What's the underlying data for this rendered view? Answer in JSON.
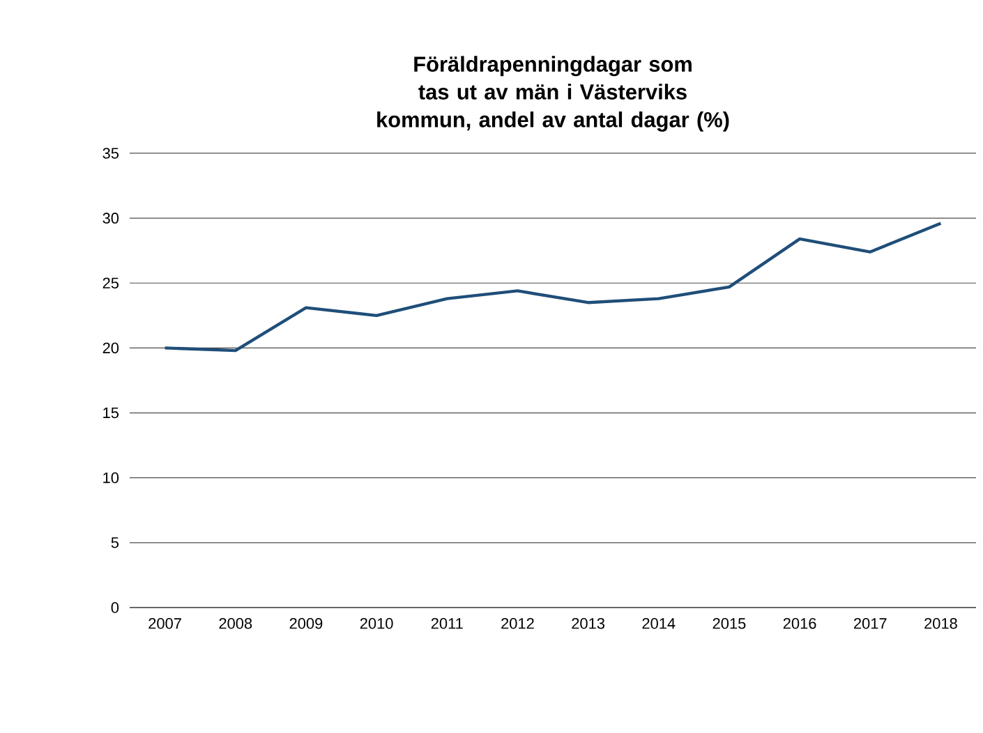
{
  "chart_data": {
    "type": "line",
    "title": "Föräldrapenningdagar som tas ut av män i Västerviks kommun, andel av antal dagar (%)",
    "categories": [
      "2007",
      "2008",
      "2009",
      "2010",
      "2011",
      "2012",
      "2013",
      "2014",
      "2015",
      "2016",
      "2017",
      "2018"
    ],
    "series": [
      {
        "color": "#1f4e79",
        "values": [
          20.0,
          19.8,
          23.1,
          22.5,
          23.8,
          24.4,
          23.5,
          23.8,
          24.7,
          28.4,
          27.4,
          29.6
        ]
      }
    ],
    "ylim": [
      0,
      35
    ],
    "yticks": [
      0,
      5,
      10,
      15,
      20,
      25,
      30,
      35
    ],
    "grid": "y",
    "legend": false,
    "marker": "none",
    "line_style": "solid"
  }
}
